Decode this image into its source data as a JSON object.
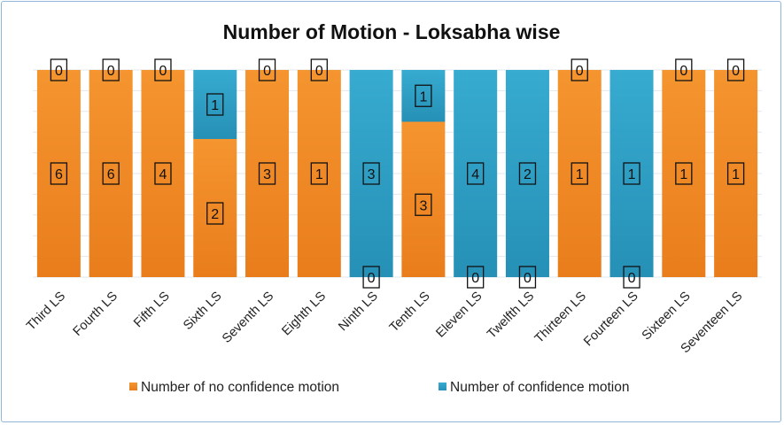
{
  "chart_data": {
    "type": "bar",
    "stacked": true,
    "normalized": "100%",
    "title": "Number of Motion - Loksabha wise",
    "xlabel": "",
    "ylabel": "",
    "grid": true,
    "legend_position": "bottom",
    "categories": [
      "Third LS",
      "Fourth LS",
      "Fifth LS",
      "Sixth LS",
      "Seventh LS",
      "Eighth LS",
      "Ninth LS",
      "Tenth LS",
      "Eleven LS",
      "Twelfth LS",
      "Thirteen LS",
      "Fourteen LS",
      "Sixteen LS",
      "Seventeen LS"
    ],
    "series": [
      {
        "name": "Number of no confidence motion",
        "color": "#f28e2b",
        "values": [
          6,
          6,
          4,
          2,
          3,
          1,
          0,
          3,
          0,
          0,
          1,
          0,
          1,
          1
        ]
      },
      {
        "name": "Number of confidence motion",
        "color": "#2f9fc4",
        "values": [
          0,
          0,
          0,
          1,
          0,
          0,
          3,
          1,
          4,
          2,
          0,
          1,
          0,
          0
        ]
      }
    ]
  }
}
